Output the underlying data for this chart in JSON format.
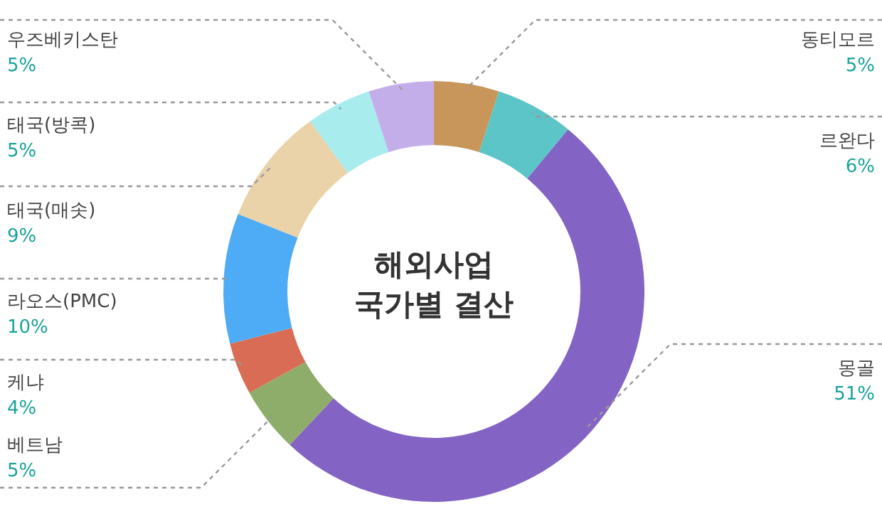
{
  "chart_data": {
    "type": "donut",
    "title": "해외사업 국가별 결산",
    "categories": [
      "동티모르",
      "르완다",
      "몽골",
      "베트남",
      "케냐",
      "라오스(PMC)",
      "태국(매솟)",
      "태국(방콕)",
      "우즈베키스탄"
    ],
    "values": [
      5,
      6,
      51,
      5,
      4,
      10,
      9,
      5,
      5
    ],
    "value_labels": [
      "5%",
      "6%",
      "51%",
      "5%",
      "4%",
      "10%",
      "9%",
      "5%",
      "5%"
    ],
    "colors": [
      "#c8965a",
      "#5bc5c8",
      "#8363c4",
      "#8fad6a",
      "#d96c55",
      "#4eabf5",
      "#ead3a8",
      "#a8ecee",
      "#c3aeea"
    ]
  }
}
